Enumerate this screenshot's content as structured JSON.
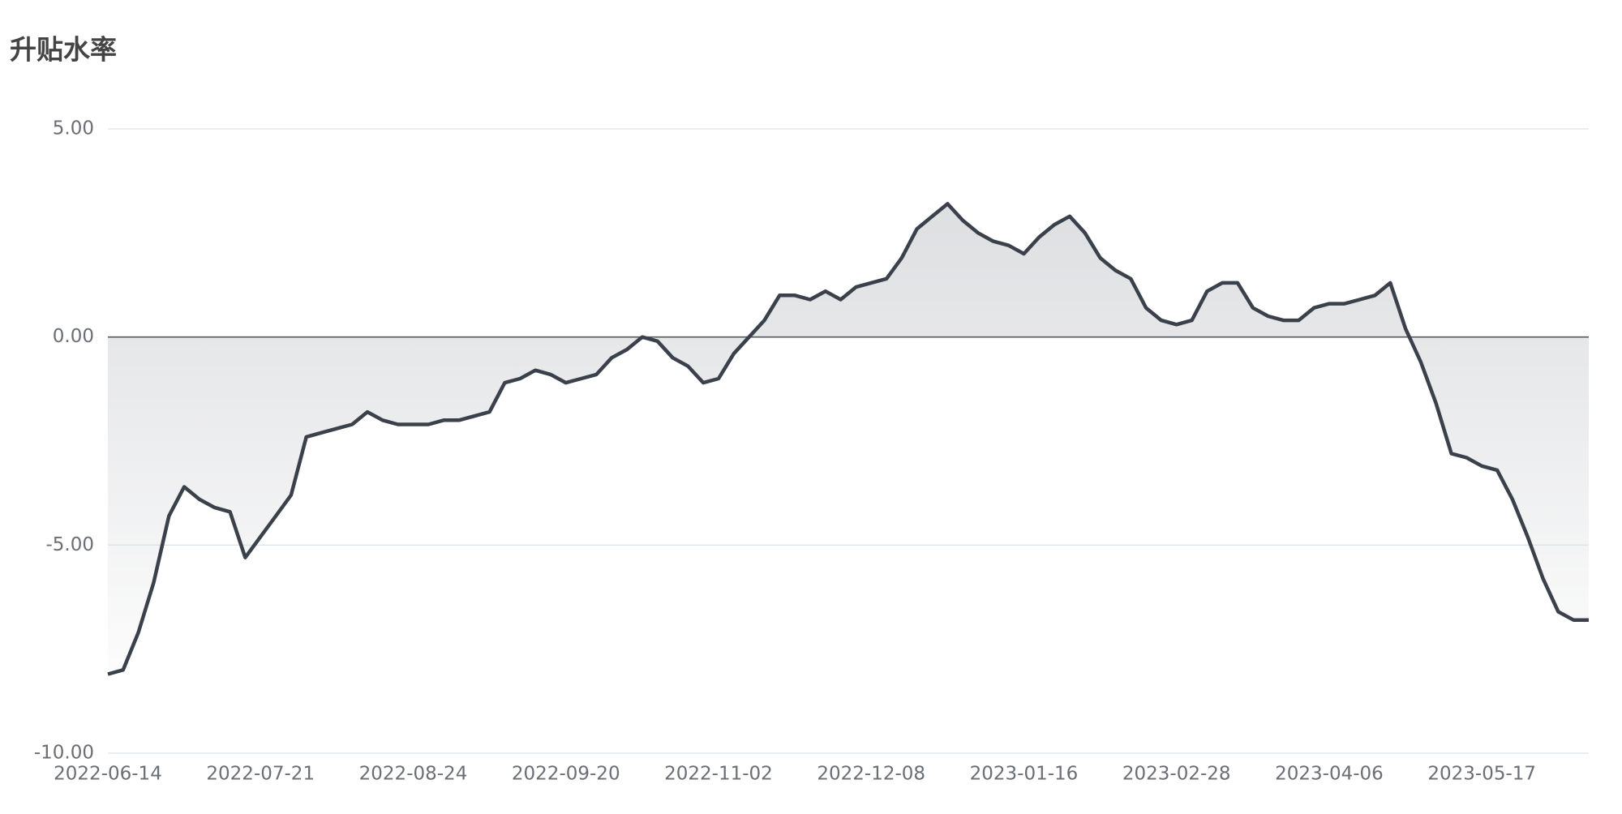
{
  "chart_data": {
    "type": "line",
    "title": "升贴水率",
    "categories": [
      "2022-06-14",
      null,
      null,
      null,
      null,
      null,
      null,
      null,
      null,
      null,
      "2022-07-21",
      null,
      null,
      null,
      null,
      null,
      null,
      null,
      null,
      null,
      "2022-08-24",
      null,
      null,
      null,
      null,
      null,
      null,
      null,
      null,
      null,
      "2022-09-20",
      null,
      null,
      null,
      null,
      null,
      null,
      null,
      null,
      null,
      "2022-11-02",
      null,
      null,
      null,
      null,
      null,
      null,
      null,
      null,
      null,
      "2022-12-08",
      null,
      null,
      null,
      null,
      null,
      null,
      null,
      null,
      null,
      "2023-01-16",
      null,
      null,
      null,
      null,
      null,
      null,
      null,
      null,
      null,
      "2023-02-28",
      null,
      null,
      null,
      null,
      null,
      null,
      null,
      null,
      null,
      "2023-04-06",
      null,
      null,
      null,
      null,
      null,
      null,
      null,
      null,
      null,
      "2023-05-17",
      null,
      null,
      null,
      null,
      null,
      null,
      null
    ],
    "values": [
      -8.1,
      -8.0,
      -7.1,
      -5.9,
      -4.3,
      -3.6,
      -3.9,
      -4.1,
      -4.2,
      -5.3,
      -4.8,
      -4.3,
      -3.8,
      -2.4,
      -2.3,
      -2.2,
      -2.1,
      -1.8,
      -2.0,
      -2.1,
      -2.1,
      -2.1,
      -2.0,
      -2.0,
      -1.9,
      -1.8,
      -1.1,
      -1.0,
      -0.8,
      -0.9,
      -1.1,
      -1.0,
      -0.9,
      -0.5,
      -0.3,
      0.0,
      -0.1,
      -0.5,
      -0.7,
      -1.1,
      -1.0,
      -0.4,
      0.0,
      0.4,
      1.0,
      1.0,
      0.9,
      1.1,
      0.9,
      1.2,
      1.3,
      1.4,
      1.9,
      2.6,
      2.9,
      3.2,
      2.8,
      2.5,
      2.3,
      2.2,
      2.0,
      2.4,
      2.7,
      2.9,
      2.5,
      1.9,
      1.6,
      1.4,
      0.7,
      0.4,
      0.3,
      0.4,
      1.1,
      1.3,
      1.3,
      0.7,
      0.5,
      0.4,
      0.4,
      0.7,
      0.8,
      0.8,
      0.9,
      1.0,
      1.3,
      0.2,
      -0.6,
      -1.6,
      -2.8,
      -2.9,
      -3.1,
      -3.2,
      -3.9,
      -4.8,
      -5.8,
      -6.6,
      -6.8,
      -6.8
    ],
    "color": "#3a414b",
    "ylim": [
      -10,
      5
    ],
    "yticks": [
      {
        "value": 5,
        "label": "5.00"
      },
      {
        "value": 0,
        "label": "0.00"
      },
      {
        "value": -5,
        "label": "-5.00"
      },
      {
        "value": -10,
        "label": "-10.00"
      }
    ],
    "grid": true
  }
}
